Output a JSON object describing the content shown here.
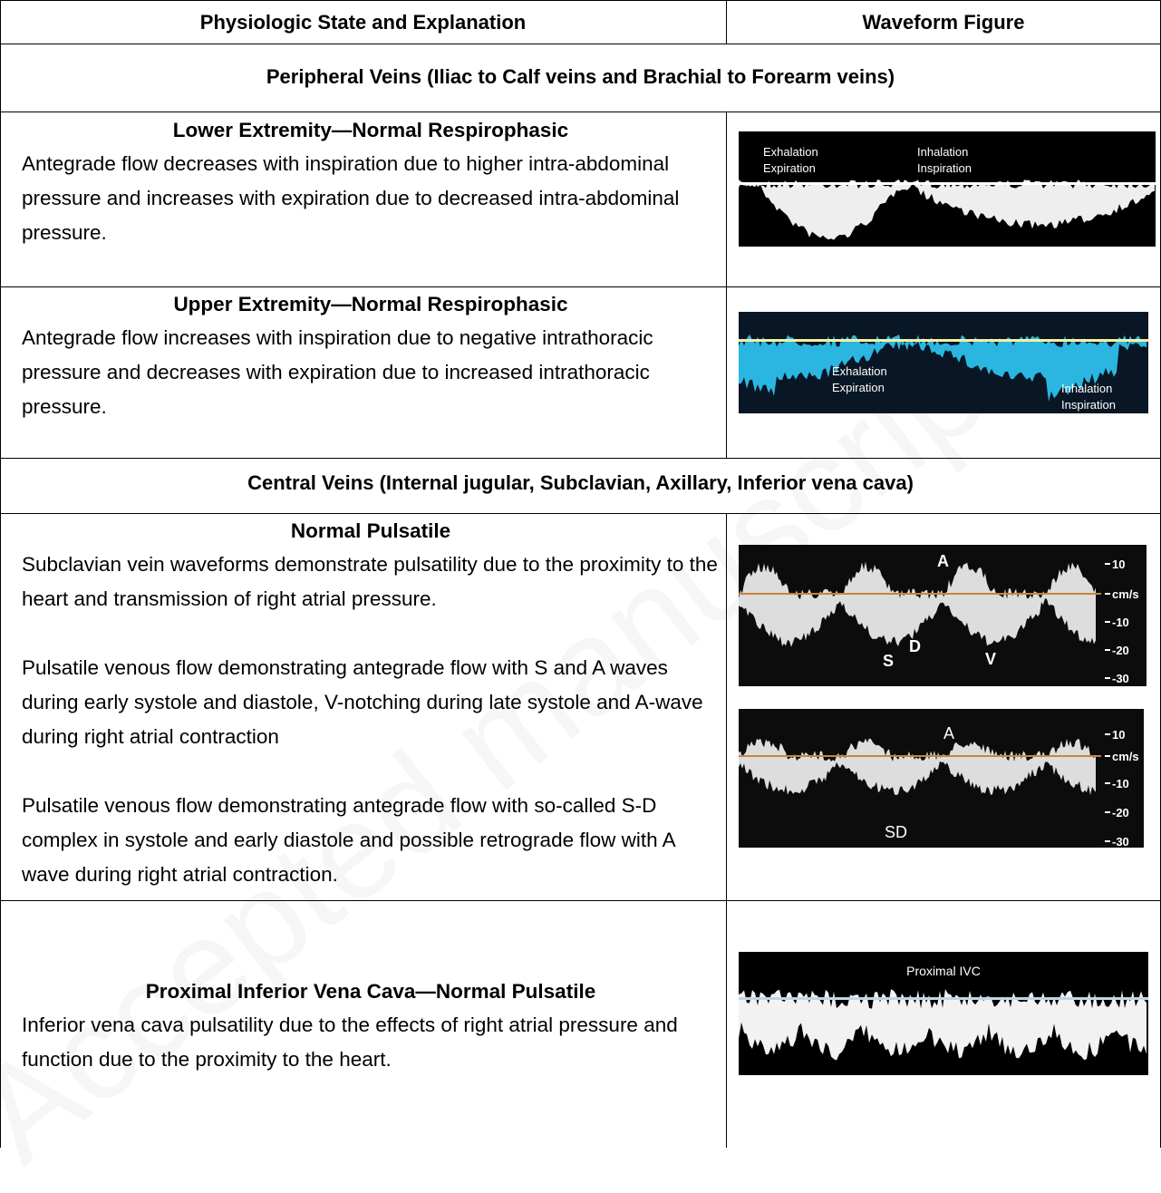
{
  "table": {
    "header": [
      "Physiologic State and Explanation",
      "Waveform Figure"
    ],
    "sections": [
      {
        "title": "Peripheral Veins (Iliac to Calf veins and Brachial to Forearm veins)",
        "rows": [
          {
            "heading": "Lower Extremity—Normal Respirophasic",
            "paragraphs": [
              "Antegrade flow decreases with inspiration due to higher intra-abdominal pressure and increases with expiration due to decreased intra-abdominal pressure."
            ],
            "figures": [
              {
                "labels": [
                  "Exhalation",
                  "Expiration",
                  "Inhalation",
                  "Inspiration"
                ]
              }
            ]
          },
          {
            "heading": "Upper Extremity—Normal Respirophasic",
            "paragraphs": [
              "Antegrade flow increases with inspiration due to negative intrathoracic pressure and decreases with expiration due to increased intrathoracic pressure."
            ],
            "figures": [
              {
                "labels": [
                  "Exhalation",
                  "Expiration",
                  "Inhalation",
                  "Inspiration"
                ]
              }
            ]
          }
        ]
      },
      {
        "title": "Central Veins (Internal jugular, Subclavian, Axillary, Inferior vena cava)",
        "rows": [
          {
            "heading": "Normal Pulsatile",
            "paragraphs": [
              "Subclavian vein waveforms demonstrate pulsatility due to the proximity to the heart and transmission of right atrial pressure.",
              "Pulsatile venous flow demonstrating antegrade flow with S and A waves during early systole and diastole, V-notching during late systole and A-wave during right atrial contraction",
              "Pulsatile venous flow demonstrating antegrade flow with so-called S-D complex in systole and early diastole and possible retrograde flow with A wave during right atrial contraction."
            ],
            "figures": [
              {
                "labels": [
                  "A",
                  "S",
                  "D",
                  "V"
                ],
                "scale": [
                  "10",
                  "cm/s",
                  "-10",
                  "-20",
                  "-30"
                ]
              },
              {
                "labels": [
                  "A",
                  "SD"
                ],
                "scale": [
                  "10",
                  "cm/s",
                  "-10",
                  "-20",
                  "-30"
                ]
              }
            ]
          },
          {
            "heading": "Proximal Inferior Vena Cava—Normal Pulsatile",
            "paragraphs": [
              "Inferior vena cava pulsatility due to the effects of right atrial pressure and function due to the proximity to the heart."
            ],
            "figures": [
              {
                "labels": [
                  "Proximal IVC"
                ]
              }
            ]
          }
        ]
      }
    ]
  },
  "watermark": "Accepted manuscript"
}
